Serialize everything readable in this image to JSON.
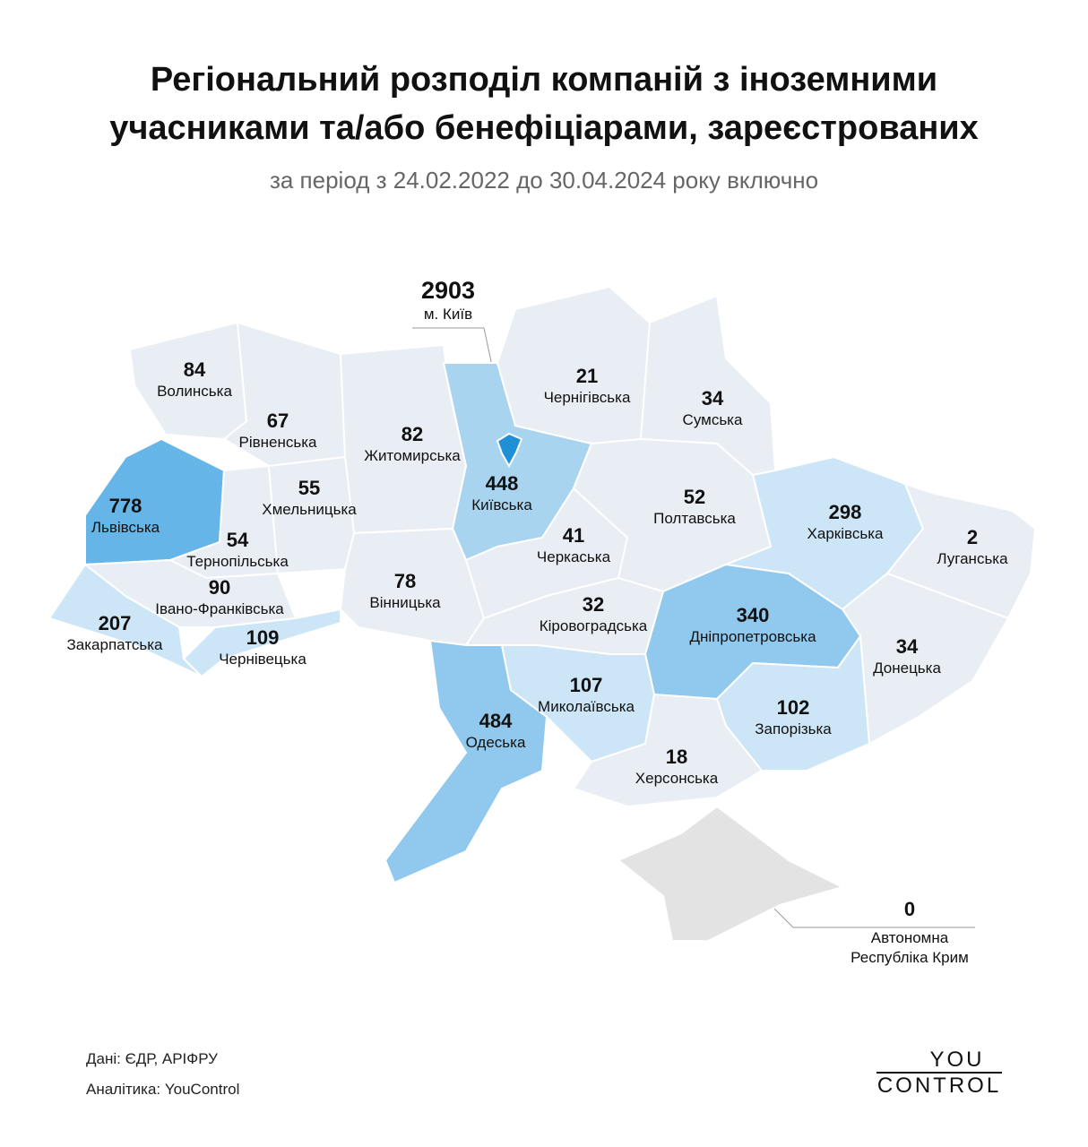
{
  "header": {
    "title": [
      "Регіональний розподіл компаній з іноземними",
      "учасниками та/або бенефіціарами, зареєстрованих"
    ],
    "subtitle": "за період з 24.02.2022 до 30.04.2024 року включно"
  },
  "regions": [
    {
      "name": "Волинська",
      "value": 84,
      "color": "#e8eef4"
    },
    {
      "name": "Рівненська",
      "value": 67,
      "color": "#e8eef4"
    },
    {
      "name": "Житомирська",
      "value": 82,
      "color": "#e8eef4"
    },
    {
      "name": "Київська",
      "value": 448,
      "color": "#a8d4f0"
    },
    {
      "name": "Чернігівська",
      "value": 21,
      "color": "#e8eef4"
    },
    {
      "name": "Сумська",
      "value": 34,
      "color": "#e8eef4"
    },
    {
      "name": "Львівська",
      "value": 778,
      "color": "#66b5e8"
    },
    {
      "name": "Тернопільська",
      "value": 54,
      "color": "#e8eef4"
    },
    {
      "name": "Хмельницька",
      "value": 55,
      "color": "#e8eef4"
    },
    {
      "name": "Івано-Франківська",
      "value": 90,
      "color": "#e8eef4"
    },
    {
      "name": "Закарпатська",
      "value": 207,
      "color": "#cce6f7"
    },
    {
      "name": "Чернівецька",
      "value": 109,
      "color": "#cce6f7"
    },
    {
      "name": "Вінницька",
      "value": 78,
      "color": "#e8eef4"
    },
    {
      "name": "Черкаська",
      "value": 41,
      "color": "#e8eef4"
    },
    {
      "name": "Полтавська",
      "value": 52,
      "color": "#e8eef4"
    },
    {
      "name": "Харківська",
      "value": 298,
      "color": "#cce6f7"
    },
    {
      "name": "Луганська",
      "value": 2,
      "color": "#e8eef4"
    },
    {
      "name": "Донецька",
      "value": 34,
      "color": "#e8eef4"
    },
    {
      "name": "Дніпропетровська",
      "value": 340,
      "color": "#90c9ed"
    },
    {
      "name": "Кіровоградська",
      "value": 32,
      "color": "#e8eef4"
    },
    {
      "name": "Одеська",
      "value": 484,
      "color": "#90c9ed"
    },
    {
      "name": "Миколаївська",
      "value": 107,
      "color": "#cce6f7"
    },
    {
      "name": "Запорізька",
      "value": 102,
      "color": "#cce6f7"
    },
    {
      "name": "Херсонська",
      "value": 18,
      "color": "#e8eef4"
    },
    {
      "name": "Автономна Республіка Крим",
      "value": 0,
      "color": "#e3e3e3"
    },
    {
      "name": "м. Київ",
      "value": 2903,
      "color": "#1f8fd6"
    }
  ],
  "footer": {
    "source": "Дані:  ЄДР, АРІФРУ",
    "analytics": "Аналітика: YouControl",
    "logo": [
      "YOU",
      "CONTROL"
    ]
  }
}
